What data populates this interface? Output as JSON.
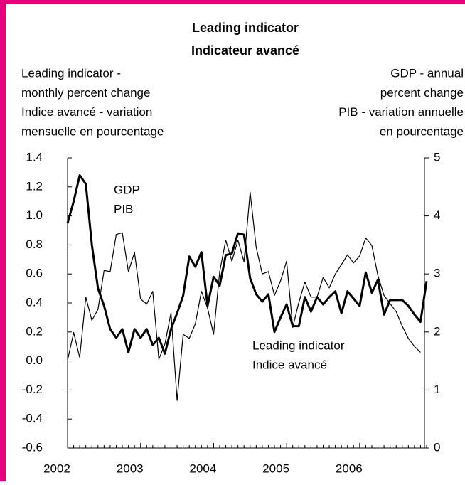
{
  "chart_data": {
    "type": "line",
    "title": [
      "Leading indicator",
      "Indicateur avancé"
    ],
    "y_label": [
      "Leading indicator -",
      "monthly percent change",
      "Indice avancé - variation",
      "mensuelle en pourcentage"
    ],
    "y2_label": [
      "GDP - annual",
      "percent change",
      "PIB - variation annuelle",
      "en pourcentage"
    ],
    "categories": [
      "2002",
      null,
      null,
      null,
      null,
      null,
      null,
      null,
      null,
      null,
      null,
      null,
      "2003",
      null,
      null,
      null,
      null,
      null,
      null,
      null,
      null,
      null,
      null,
      null,
      "2004",
      null,
      null,
      null,
      null,
      null,
      null,
      null,
      null,
      null,
      null,
      null,
      "2005",
      null,
      null,
      null,
      null,
      null,
      null,
      null,
      null,
      null,
      null,
      null,
      "2006",
      null,
      null,
      null,
      null,
      null,
      null,
      null,
      null,
      null,
      null,
      null
    ],
    "series": [
      {
        "name": [
          "Leading indicator",
          "Indice avancé"
        ],
        "color": "#000000",
        "width": 3,
        "axis": "y",
        "values": [
          0.95,
          1.1,
          1.28,
          1.22,
          0.8,
          0.5,
          0.38,
          0.22,
          0.16,
          0.22,
          0.06,
          0.22,
          0.16,
          0.22,
          0.11,
          0.16,
          0.05,
          0.22,
          0.33,
          0.45,
          0.72,
          0.65,
          0.75,
          0.38,
          0.58,
          0.52,
          0.73,
          0.74,
          0.88,
          0.87,
          0.57,
          0.46,
          0.41,
          0.46,
          0.2,
          0.3,
          0.39,
          0.24,
          0.24,
          0.44,
          0.34,
          0.44,
          0.39,
          0.44,
          0.48,
          0.33,
          0.48,
          0.43,
          0.38,
          0.61,
          0.47,
          0.56,
          0.32,
          0.42,
          0.42,
          0.42,
          0.38,
          0.32,
          0.27,
          0.55
        ]
      },
      {
        "name": [
          "GDP",
          "PIB"
        ],
        "color": "#000000",
        "width": 1.2,
        "axis": "y2",
        "values": [
          1.51,
          1.99,
          1.56,
          2.6,
          2.2,
          2.39,
          3.06,
          3.04,
          3.68,
          3.71,
          3.04,
          3.37,
          2.57,
          2.48,
          2.7,
          1.53,
          1.79,
          2.33,
          0.82,
          1.96,
          1.89,
          2.14,
          2.7,
          2.41,
          1.96,
          3.04,
          3.58,
          3.22,
          3.58,
          3.21,
          4.41,
          3.46,
          3.0,
          3.04,
          2.63,
          2.88,
          3.22,
          2.08,
          2.51,
          2.86,
          2.6,
          2.6,
          2.94,
          2.76,
          3.0,
          3.16,
          3.33,
          3.19,
          3.31,
          3.62,
          3.49,
          2.97,
          2.63,
          2.49,
          2.35,
          2.1,
          1.89,
          1.75,
          1.65,
          null
        ]
      }
    ],
    "ylim": [
      -0.6,
      1.4
    ],
    "yticks": [
      -0.6,
      -0.4,
      -0.2,
      {
        "value": 0,
        "label": "0.0"
      },
      0.2,
      0.4,
      0.6,
      0.8,
      {
        "value": 1,
        "label": "1.0"
      },
      1.2,
      1.4
    ],
    "y2lim": [
      0,
      5
    ],
    "y2ticks": [
      0,
      1,
      2,
      3,
      4,
      5
    ],
    "border_color": "#e6007e"
  }
}
